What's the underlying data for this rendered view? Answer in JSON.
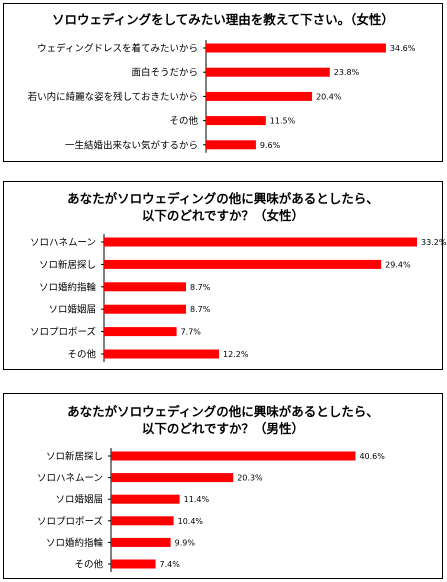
{
  "chart_data": [
    {
      "type": "bar",
      "orientation": "horizontal",
      "title": "ソロウェディングをしてみたい理由を教えて下さい。（女性）",
      "categories": [
        "ウェディングドレスを着てみたいから",
        "面白そうだから",
        "若い内に綺麗な姿を残しておきたいから",
        "その他",
        "一生結婚出来ない気がするから"
      ],
      "values": [
        34.6,
        23.8,
        20.4,
        11.5,
        9.6
      ],
      "value_labels": [
        "34.6%",
        "23.8%",
        "20.4%",
        "11.5%",
        "9.6%"
      ],
      "xlim": [
        0,
        40
      ],
      "color": "#ff0000"
    },
    {
      "type": "bar",
      "orientation": "horizontal",
      "title": [
        "あなたがソロウェディングの他に興味があるとしたら、",
        "以下のどれですか？（女性）"
      ],
      "categories": [
        "ソロハネムーン",
        "ソロ新居探し",
        "ソロ婚約指輪",
        "ソロ婚姻届",
        "ソロプロポーズ",
        "その他"
      ],
      "values": [
        33.2,
        29.4,
        8.7,
        8.7,
        7.7,
        12.2
      ],
      "value_labels": [
        "33.2%",
        "29.4%",
        "8.7%",
        "8.7%",
        "7.7%",
        "12.2%"
      ],
      "xlim": [
        0,
        33.2
      ],
      "color": "#ff0000"
    },
    {
      "type": "bar",
      "orientation": "horizontal",
      "title": [
        "あなたがソロウェディングの他に興味があるとしたら、",
        "以下のどれですか？（男性）"
      ],
      "categories": [
        "ソロ新居探し",
        "ソロハネムーン",
        "ソロ婚姻届",
        "ソロプロポーズ",
        "ソロ婚約指輪",
        "その他"
      ],
      "values": [
        40.6,
        20.3,
        11.4,
        10.4,
        9.9,
        7.4
      ],
      "value_labels": [
        "40.6%",
        "20.3%",
        "11.4%",
        "10.4%",
        "9.9%",
        "7.4%"
      ],
      "xlim": [
        0,
        47
      ],
      "color": "#ff0000"
    }
  ]
}
